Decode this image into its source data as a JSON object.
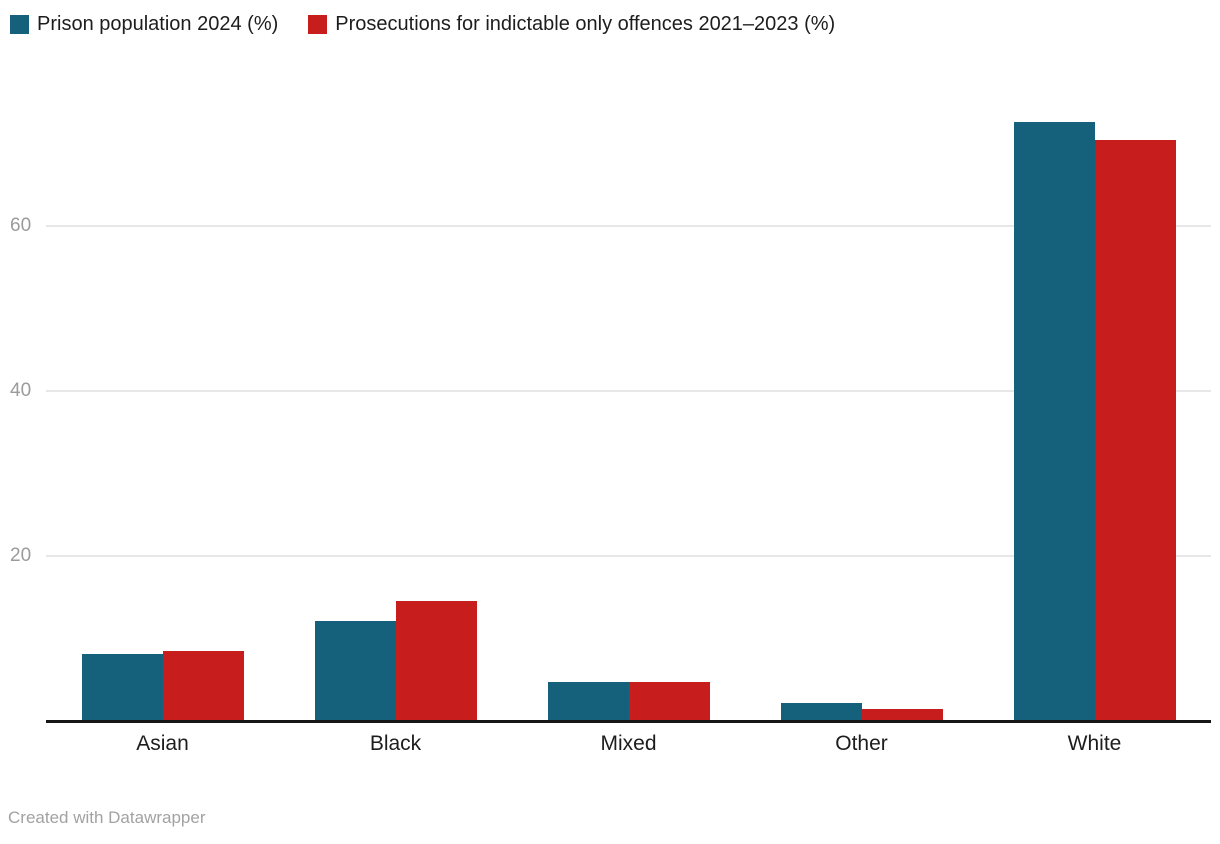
{
  "chart_data": {
    "type": "bar",
    "title": "",
    "categories": [
      "Asian",
      "Black",
      "Mixed",
      "Other",
      "White"
    ],
    "series": [
      {
        "name": "Prison population 2024 (%)",
        "color": "#15607a",
        "values": [
          8.1,
          12.1,
          4.7,
          2.2,
          72.6
        ]
      },
      {
        "name": "Prosecutions for indictable only offences 2021–2023 (%)",
        "color": "#c71e1d",
        "values": [
          8.5,
          14.5,
          4.7,
          1.5,
          70.4
        ]
      }
    ],
    "xlabel": "",
    "ylabel": "",
    "yticks": [
      20,
      40,
      60
    ],
    "ylim": [
      0,
      76
    ],
    "grid": true,
    "legend_position": "top-left"
  },
  "legend": {
    "items": [
      {
        "label": "Prison population 2024 (%)"
      },
      {
        "label": "Prosecutions for indictable only offences 2021–2023 (%)"
      }
    ]
  },
  "footer": {
    "credit": "Created with Datawrapper"
  },
  "colors": {
    "series1": "#15607a",
    "series2": "#c71e1d",
    "gridline": "#e7e7e7",
    "axis": "#161616",
    "tick_text": "#9b9b9b",
    "label_text": "#1d1d1d",
    "footer_text": "#a2a2a2"
  }
}
